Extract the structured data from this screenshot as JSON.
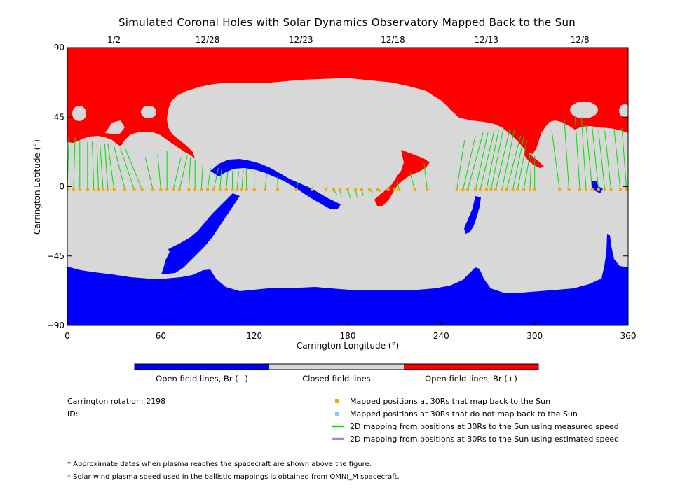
{
  "chart_data": {
    "type": "map",
    "title": "Simulated Coronal Holes with Solar Dynamics Observatory Mapped Back to the Sun",
    "xlabel": "Carrington Longitude (°)",
    "ylabel": "Carrington Latitude (°)",
    "xlim": [
      0,
      360
    ],
    "ylim": [
      -90,
      90
    ],
    "x_ticks": [
      0,
      60,
      120,
      180,
      240,
      300,
      360
    ],
    "y_ticks": [
      90,
      45,
      0,
      -45,
      -90
    ],
    "y_tick_labels": [
      "90",
      "45",
      "0",
      "−45",
      "−90"
    ],
    "top_dates": [
      {
        "label": "1/2",
        "lon": 30
      },
      {
        "label": "12/28",
        "lon": 90
      },
      {
        "label": "12/23",
        "lon": 150
      },
      {
        "label": "12/18",
        "lon": 209
      },
      {
        "label": "12/13",
        "lon": 269
      },
      {
        "label": "12/8",
        "lon": 329
      }
    ],
    "colorbar": [
      {
        "label": "Open field lines, Br (−)",
        "color": "#0000ff"
      },
      {
        "label": "Closed field lines",
        "color": "#d8d8d8"
      },
      {
        "label": "Open field lines, Br (+)",
        "color": "#ff0000"
      }
    ],
    "colors": {
      "positive": "#ff0000",
      "negative": "#0000ff",
      "closed": "#d8d8d8",
      "mapped": "#f2a900",
      "unmapped": "#87c8f0",
      "measured": "#00e000",
      "estimated": "#b07cf0"
    },
    "mappings": [
      [
        0,
        -2,
        1,
        33
      ],
      [
        4,
        -2,
        5,
        32
      ],
      [
        8,
        -2,
        8,
        30
      ],
      [
        13,
        -2,
        13,
        29
      ],
      [
        17,
        -2,
        16,
        29
      ],
      [
        20,
        -2,
        19,
        28
      ],
      [
        23,
        -2,
        21,
        27
      ],
      [
        26,
        -2,
        24,
        28
      ],
      [
        30,
        -2,
        26,
        28
      ],
      [
        37,
        -2,
        30,
        26
      ],
      [
        43,
        -2,
        34,
        25
      ],
      [
        48,
        -2,
        37,
        25
      ],
      [
        55,
        -2,
        50,
        19
      ],
      [
        60,
        -2,
        58,
        21
      ],
      [
        64,
        -2,
        64,
        23
      ],
      [
        68,
        -2,
        73,
        19
      ],
      [
        72,
        -2,
        77,
        20
      ],
      [
        78,
        -2,
        79,
        19
      ],
      [
        82,
        -2,
        82,
        17
      ],
      [
        86,
        -2,
        87,
        14
      ],
      [
        90,
        -2,
        92,
        12
      ],
      [
        94,
        -2,
        97,
        12
      ],
      [
        98,
        -2,
        99,
        11
      ],
      [
        102,
        -2,
        103,
        10
      ],
      [
        106,
        -2,
        106,
        10
      ],
      [
        109,
        -2,
        110,
        10
      ],
      [
        112,
        -2,
        113,
        11
      ],
      [
        115,
        -2,
        115,
        12
      ],
      [
        120,
        -2,
        120,
        11
      ],
      [
        127,
        -2,
        128,
        9
      ],
      [
        135,
        -2,
        135,
        7
      ],
      [
        147,
        -2,
        148,
        3
      ],
      [
        157,
        -2,
        158,
        1
      ],
      [
        166,
        -2,
        167,
        0
      ],
      [
        171,
        -2,
        173,
        -5
      ],
      [
        175,
        -2,
        176,
        -7
      ],
      [
        180,
        -2,
        182,
        -8
      ],
      [
        185,
        -2,
        186,
        -7
      ],
      [
        189,
        -2,
        190,
        -6
      ],
      [
        194,
        -2,
        196,
        -4
      ],
      [
        199,
        -2,
        201,
        -3
      ],
      [
        206,
        -2,
        208,
        0
      ],
      [
        210,
        -2,
        212,
        1
      ],
      [
        213,
        -2,
        212,
        3
      ],
      [
        223,
        -2,
        220,
        9
      ],
      [
        231,
        -2,
        229,
        15
      ],
      [
        250,
        -2,
        255,
        30
      ],
      [
        254,
        -2,
        262,
        33
      ],
      [
        257,
        -2,
        267,
        35
      ],
      [
        262,
        -2,
        270,
        35
      ],
      [
        265,
        -2,
        274,
        36
      ],
      [
        269,
        -2,
        277,
        37
      ],
      [
        272,
        -2,
        280,
        38
      ],
      [
        275,
        -2,
        284,
        37
      ],
      [
        279,
        -2,
        287,
        37
      ],
      [
        282,
        -2,
        291,
        33
      ],
      [
        286,
        -2,
        293,
        32
      ],
      [
        289,
        -2,
        295,
        30
      ],
      [
        293,
        -2,
        297,
        21
      ],
      [
        297,
        -2,
        298,
        21
      ],
      [
        300,
        -2,
        300,
        20
      ],
      [
        316,
        -2,
        311,
        36
      ],
      [
        322,
        -2,
        319,
        44
      ],
      [
        329,
        -2,
        326,
        45
      ],
      [
        333,
        -2,
        330,
        45
      ],
      [
        337,
        -2,
        333,
        40
      ],
      [
        341,
        -2,
        337,
        38
      ],
      [
        345,
        -2,
        341,
        36
      ],
      [
        349,
        -2,
        345,
        36
      ],
      [
        355,
        -2,
        351,
        37
      ],
      [
        359,
        -2,
        356,
        38
      ]
    ],
    "footer": {
      "carrington_rotation": "Carrington rotation: 2198",
      "id": "ID:",
      "legend": [
        {
          "label": "Mapped positions at 30Rs that map back to the Sun",
          "kind": "square",
          "color": "#f2a900"
        },
        {
          "label": "Mapped positions at 30Rs that do not map back to the Sun",
          "kind": "square",
          "color": "#87c8f0"
        },
        {
          "label": "2D mapping from positions at 30Rs to the Sun using measured speed",
          "kind": "line",
          "color": "#00e000"
        },
        {
          "label": "2D mapping from positions at 30Rs to the Sun using estimated speed",
          "kind": "line",
          "color": "#b07cf0"
        }
      ],
      "notes": [
        "* Approximate dates when plasma reaches the spacecraft are shown above the figure.",
        "* Solar wind plasma speed used in the ballistic mappings is obtained from OMNI_M spacecraft."
      ]
    }
  }
}
